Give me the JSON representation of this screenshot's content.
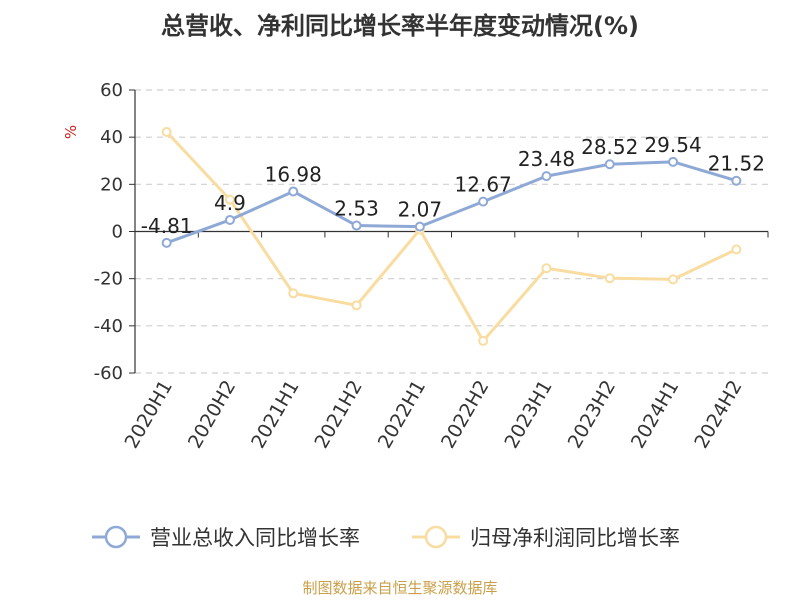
{
  "chart_data": {
    "type": "line",
    "title": "总营收、净利同比增长率半年度变动情况(%)",
    "ylabel": "%",
    "xlabel": "",
    "categories": [
      "2020H1",
      "2020H2",
      "2021H1",
      "2021H2",
      "2022H1",
      "2022H2",
      "2023H1",
      "2023H2",
      "2024H1",
      "2024H2"
    ],
    "ylim": [
      -60,
      60
    ],
    "yticks": [
      60,
      40,
      20,
      0,
      -20,
      -40,
      -60
    ],
    "grid": true,
    "legend_position": "bottom",
    "series": [
      {
        "name": "营业总收入同比增长率",
        "color": "#8fa9d6",
        "values": [
          -4.81,
          4.9,
          16.98,
          2.53,
          2.07,
          12.67,
          23.48,
          28.52,
          29.54,
          21.52
        ],
        "labels": [
          "-4.81",
          "4.9",
          "16.98",
          "2.53",
          "2.07",
          "12.67",
          "23.48",
          "28.52",
          "29.54",
          "21.52"
        ],
        "show_labels": true
      },
      {
        "name": "归母净利润同比增长率",
        "color": "#f9dca0",
        "values": [
          42.2,
          13.5,
          -26.2,
          -31.3,
          0.8,
          -46.4,
          -15.6,
          -19.8,
          -20.3,
          -7.6
        ],
        "show_labels": false
      }
    ]
  },
  "footer": {
    "source": "制图数据来自恒生聚源数据库"
  }
}
